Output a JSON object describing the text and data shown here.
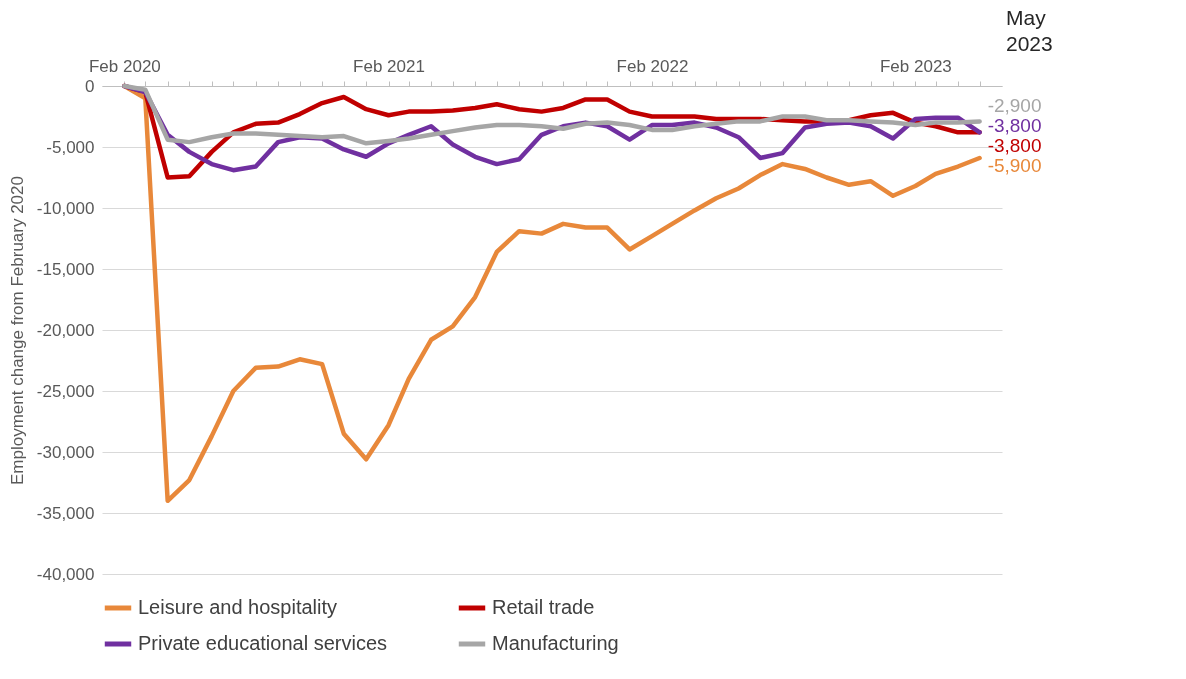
{
  "chart_data": {
    "type": "line",
    "ylabel": "Employment change from February 2020",
    "annotations": [
      "May 2023"
    ],
    "x": [
      "2020-02",
      "2020-03",
      "2020-04",
      "2020-05",
      "2020-06",
      "2020-07",
      "2020-08",
      "2020-09",
      "2020-10",
      "2020-11",
      "2020-12",
      "2021-01",
      "2021-02",
      "2021-03",
      "2021-04",
      "2021-05",
      "2021-06",
      "2021-07",
      "2021-08",
      "2021-09",
      "2021-10",
      "2021-11",
      "2021-12",
      "2022-01",
      "2022-02",
      "2022-03",
      "2022-04",
      "2022-05",
      "2022-06",
      "2022-07",
      "2022-08",
      "2022-09",
      "2022-10",
      "2022-11",
      "2022-12",
      "2023-01",
      "2023-02",
      "2023-03",
      "2023-04",
      "2023-05"
    ],
    "xlim": [
      "2020-01",
      "2023-06"
    ],
    "xticks": [
      {
        "value": "2020-02",
        "label": "Feb 2020"
      },
      {
        "value": "2020-03",
        "label": null
      },
      {
        "value": "2020-04",
        "label": null
      },
      {
        "value": "2020-05",
        "label": null
      },
      {
        "value": "2020-06",
        "label": null
      },
      {
        "value": "2020-07",
        "label": null
      },
      {
        "value": "2020-08",
        "label": null
      },
      {
        "value": "2020-09",
        "label": null
      },
      {
        "value": "2020-10",
        "label": null
      },
      {
        "value": "2020-11",
        "label": null
      },
      {
        "value": "2020-12",
        "label": null
      },
      {
        "value": "2021-01",
        "label": null
      },
      {
        "value": "2021-02",
        "label": "Feb 2021"
      },
      {
        "value": "2021-03",
        "label": null
      },
      {
        "value": "2021-04",
        "label": null
      },
      {
        "value": "2021-05",
        "label": null
      },
      {
        "value": "2021-06",
        "label": null
      },
      {
        "value": "2021-07",
        "label": null
      },
      {
        "value": "2021-08",
        "label": null
      },
      {
        "value": "2021-09",
        "label": null
      },
      {
        "value": "2021-10",
        "label": null
      },
      {
        "value": "2021-11",
        "label": null
      },
      {
        "value": "2021-12",
        "label": null
      },
      {
        "value": "2022-01",
        "label": null
      },
      {
        "value": "2022-02",
        "label": "Feb 2022"
      },
      {
        "value": "2022-03",
        "label": null
      },
      {
        "value": "2022-04",
        "label": null
      },
      {
        "value": "2022-05",
        "label": null
      },
      {
        "value": "2022-06",
        "label": null
      },
      {
        "value": "2022-07",
        "label": null
      },
      {
        "value": "2022-08",
        "label": null
      },
      {
        "value": "2022-09",
        "label": null
      },
      {
        "value": "2022-10",
        "label": null
      },
      {
        "value": "2022-11",
        "label": null
      },
      {
        "value": "2022-12",
        "label": null
      },
      {
        "value": "2023-01",
        "label": null
      },
      {
        "value": "2023-02",
        "label": "Feb 2023"
      },
      {
        "value": "2023-03",
        "label": null
      },
      {
        "value": "2023-04",
        "label": null
      },
      {
        "value": "2023-05",
        "label": null
      }
    ],
    "ylim": [
      -40000,
      0
    ],
    "yticks": [
      {
        "value": -40000,
        "label": "-40,000"
      },
      {
        "value": -35000,
        "label": "-35,000"
      },
      {
        "value": -30000,
        "label": "-30,000"
      },
      {
        "value": -25000,
        "label": "-25,000"
      },
      {
        "value": -20000,
        "label": "-20,000"
      },
      {
        "value": -15000,
        "label": "-15,000"
      },
      {
        "value": -10000,
        "label": "-10,000"
      },
      {
        "value": -5000,
        "label": "-5,000"
      },
      0
    ],
    "grid": "y",
    "legend": "bottom",
    "series": [
      {
        "name": "Leisure and hospitality",
        "color": "#e8883a",
        "values": [
          0,
          -1000,
          -34000,
          -32300,
          -28700,
          -25000,
          -23100,
          -23000,
          -22400,
          -22800,
          -28500,
          -30600,
          -27800,
          -24000,
          -20800,
          -19700,
          -17300,
          -13600,
          -11900,
          -12100,
          -11300,
          -11600,
          -11600,
          -13400,
          -12300,
          -11300,
          -10200,
          -9200,
          -8400,
          -7300,
          -6400,
          -6800,
          -7500,
          -8100,
          -7800,
          -9000,
          -8200,
          -7200,
          -6600,
          -5900
        ],
        "value_labels": [
          null,
          null,
          null,
          null,
          null,
          null,
          null,
          null,
          null,
          null,
          null,
          null,
          null,
          null,
          null,
          null,
          null,
          null,
          null,
          null,
          null,
          null,
          null,
          null,
          null,
          null,
          null,
          null,
          null,
          null,
          null,
          null,
          null,
          null,
          null,
          null,
          null,
          null,
          null,
          "-5,900"
        ]
      },
      {
        "name": "Retail trade",
        "color": "#c00000",
        "values": [
          0,
          -500,
          -7500,
          -7400,
          -5400,
          -3800,
          -3100,
          -3000,
          -2300,
          -1400,
          -900,
          -1900,
          -2400,
          -2100,
          -2100,
          -2000,
          -1800,
          -1500,
          -1900,
          -2100,
          -1800,
          -1100,
          -1100,
          -2100,
          -2500,
          -2500,
          -2500,
          -2700,
          -2700,
          -2700,
          -2800,
          -2900,
          -2900,
          -2800,
          -2400,
          -2200,
          -3000,
          -3300,
          -3800,
          -3800
        ],
        "value_labels": [
          null,
          null,
          null,
          null,
          null,
          null,
          null,
          null,
          null,
          null,
          null,
          null,
          null,
          null,
          null,
          null,
          null,
          null,
          null,
          null,
          null,
          null,
          null,
          null,
          null,
          null,
          null,
          null,
          null,
          null,
          null,
          null,
          null,
          null,
          null,
          null,
          null,
          null,
          null,
          "-3,800"
        ]
      },
      {
        "name": "Private educational services",
        "color": "#7030a0",
        "values": [
          0,
          -500,
          -4000,
          -5400,
          -6400,
          -6900,
          -6600,
          -4600,
          -4200,
          -4300,
          -5200,
          -5800,
          -4700,
          -4000,
          -3300,
          -4800,
          -5800,
          -6400,
          -6000,
          -4000,
          -3300,
          -3000,
          -3300,
          -4400,
          -3200,
          -3200,
          -3000,
          -3400,
          -4200,
          -5900,
          -5500,
          -3400,
          -3100,
          -3000,
          -3300,
          -4300,
          -2700,
          -2600,
          -2600,
          -3800
        ],
        "value_labels": [
          null,
          null,
          null,
          null,
          null,
          null,
          null,
          null,
          null,
          null,
          null,
          null,
          null,
          null,
          null,
          null,
          null,
          null,
          null,
          null,
          null,
          null,
          null,
          null,
          null,
          null,
          null,
          null,
          null,
          null,
          null,
          null,
          null,
          null,
          null,
          null,
          null,
          null,
          null,
          "-3,800"
        ]
      },
      {
        "name": "Manufacturing",
        "color": "#a6a6a6",
        "values": [
          0,
          -300,
          -4400,
          -4600,
          -4200,
          -3900,
          -3900,
          -4000,
          -4100,
          -4200,
          -4100,
          -4700,
          -4500,
          -4300,
          -4000,
          -3700,
          -3400,
          -3200,
          -3200,
          -3300,
          -3500,
          -3100,
          -3000,
          -3200,
          -3600,
          -3600,
          -3300,
          -3100,
          -2900,
          -2900,
          -2500,
          -2500,
          -2800,
          -2800,
          -2900,
          -3000,
          -3200,
          -3000,
          -3000,
          -2900
        ],
        "value_labels": [
          null,
          null,
          null,
          null,
          null,
          null,
          null,
          null,
          null,
          null,
          null,
          null,
          null,
          null,
          null,
          null,
          null,
          null,
          null,
          null,
          null,
          null,
          null,
          null,
          null,
          null,
          null,
          null,
          null,
          null,
          null,
          null,
          null,
          null,
          null,
          null,
          null,
          null,
          null,
          "-2,900"
        ]
      }
    ]
  }
}
